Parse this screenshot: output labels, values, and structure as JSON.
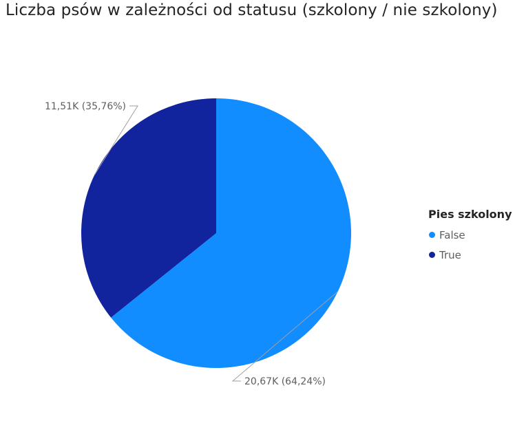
{
  "chart_data": {
    "type": "pie",
    "title": "Liczba psów w zależności od statusu (szkolony / nie szkolony)",
    "legend_title": "Pies szkolony",
    "legend_position": "right",
    "slices": [
      {
        "name": "False",
        "value": 20670,
        "percent": 64.24,
        "label": "20,67K (64,24%)",
        "color": "#118dff"
      },
      {
        "name": "True",
        "value": 11510,
        "percent": 35.76,
        "label": "11,51K (35,76%)",
        "color": "#12239e"
      }
    ]
  }
}
